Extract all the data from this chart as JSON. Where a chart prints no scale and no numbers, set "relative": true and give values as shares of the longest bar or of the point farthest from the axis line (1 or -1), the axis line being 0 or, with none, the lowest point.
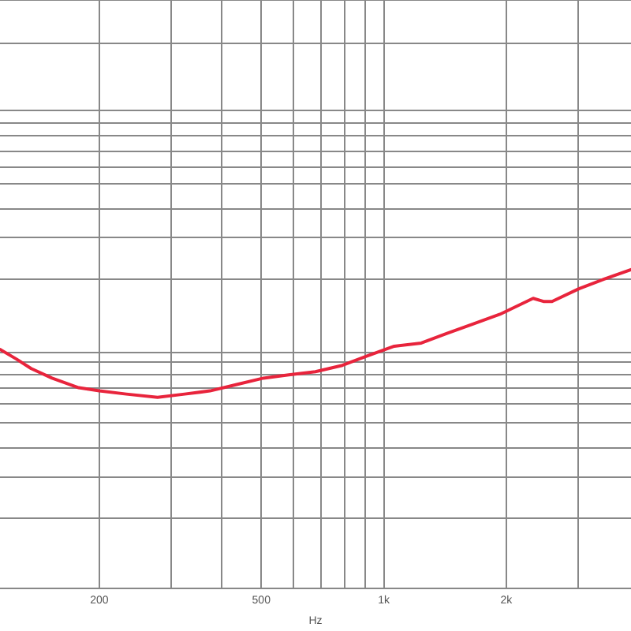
{
  "chart_data": {
    "type": "line",
    "relative": true,
    "log": "x",
    "xlabel": "Hz",
    "grid": true,
    "legend": false,
    "marker": "none",
    "line_style": "solid",
    "x": [
      114,
      125,
      136,
      153,
      178,
      200,
      233,
      278,
      324,
      374,
      435,
      506,
      584,
      679,
      791,
      912,
      1061,
      1236,
      1426,
      1660,
      1929,
      2328,
      2477,
      2590,
      3015,
      3478,
      4048
    ],
    "xlim": [
      114,
      4050
    ],
    "xticks": [
      {
        "value": 200,
        "label": "200"
      },
      {
        "value": 300,
        "label": null
      },
      {
        "value": 400,
        "label": null
      },
      {
        "value": 500,
        "label": "500"
      },
      {
        "value": 600,
        "label": null
      },
      {
        "value": 700,
        "label": null
      },
      {
        "value": 800,
        "label": null
      },
      {
        "value": 900,
        "label": null
      },
      {
        "value": 1000,
        "label": "1k"
      },
      {
        "value": 2000,
        "label": "2k"
      },
      {
        "value": 3000,
        "label": null
      }
    ],
    "series": [
      {
        "color": "#e8243c",
        "values": [
          0.75,
          0.72,
          0.69,
          0.66,
          0.63,
          0.62,
          0.61,
          0.6,
          0.61,
          0.62,
          0.64,
          0.66,
          0.67,
          0.68,
          0.7,
          0.73,
          0.76,
          0.77,
          0.8,
          0.83,
          0.86,
          0.91,
          0.9,
          0.9,
          0.94,
          0.97,
          1
        ]
      }
    ]
  }
}
